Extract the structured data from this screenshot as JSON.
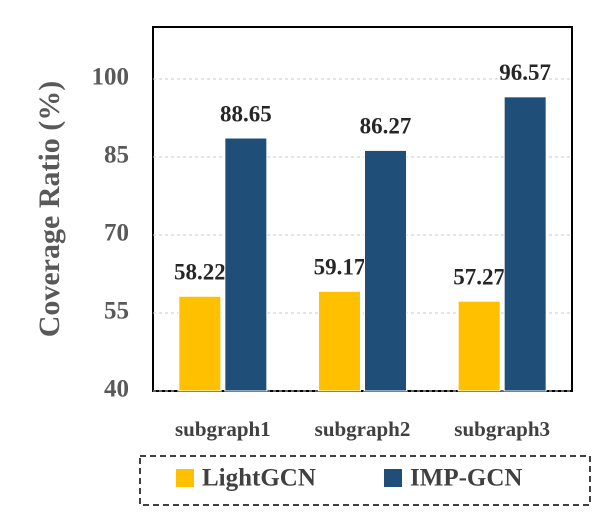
{
  "chart_data": {
    "type": "bar",
    "y_label": "Coverage Ratio (%)",
    "categories": [
      "subgraph1",
      "subgraph2",
      "subgraph3"
    ],
    "series": [
      {
        "name": "LightGCN",
        "color": "#ffc000",
        "values": [
          58.22,
          59.17,
          57.27
        ]
      },
      {
        "name": "IMP-GCN",
        "color": "#1f4e79",
        "values": [
          88.65,
          86.27,
          96.57
        ]
      }
    ],
    "ylim": [
      40,
      110
    ],
    "yticks": [
      40,
      55,
      70,
      85,
      100
    ],
    "grid": true
  }
}
